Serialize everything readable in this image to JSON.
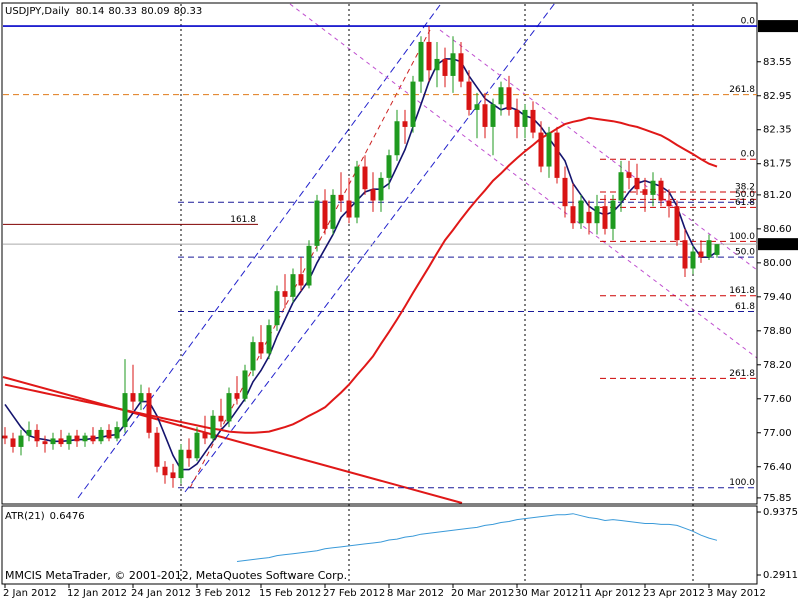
{
  "chart_data": [
    {
      "type": "candlestick",
      "title": "USDJPY,Daily",
      "categories": [
        "2 Jan 2012",
        null,
        null,
        null,
        null,
        null,
        null,
        null,
        "12 Jan 2012",
        null,
        null,
        null,
        null,
        null,
        null,
        null,
        "24 Jan 2012",
        null,
        null,
        null,
        null,
        null,
        null,
        null,
        "3 Feb 2012",
        null,
        null,
        null,
        null,
        null,
        null,
        null,
        "15 Feb 2012",
        null,
        null,
        null,
        null,
        null,
        null,
        null,
        "27 Feb 2012",
        null,
        null,
        null,
        null,
        null,
        null,
        null,
        "8 Mar 2012",
        null,
        null,
        null,
        null,
        null,
        null,
        null,
        "20 Mar 2012",
        null,
        null,
        null,
        null,
        null,
        null,
        null,
        "30 Mar 2012",
        null,
        null,
        null,
        null,
        null,
        null,
        null,
        "11 Apr 2012",
        null,
        null,
        null,
        null,
        null,
        null,
        null,
        "23 Apr 2012",
        null,
        null,
        null,
        null,
        null,
        null,
        null,
        "3 May 2012",
        null
      ],
      "open": [
        76.95,
        76.9,
        76.75,
        76.95,
        77.05,
        76.85,
        76.8,
        76.9,
        76.8,
        76.95,
        76.85,
        76.95,
        76.85,
        77.05,
        76.9,
        77.1,
        77.7,
        77.55,
        77.7,
        77.0,
        76.4,
        76.3,
        76.2,
        76.7,
        76.55,
        77.0,
        76.9,
        77.3,
        77.2,
        77.7,
        77.6,
        78.1,
        78.6,
        78.4,
        78.9,
        79.5,
        79.4,
        79.8,
        79.6,
        80.3,
        81.1,
        80.6,
        81.2,
        81.1,
        80.8,
        81.7,
        81.3,
        81.1,
        81.5,
        81.9,
        82.5,
        82.4,
        83.2,
        83.9,
        83.4,
        83.6,
        83.3,
        83.7,
        83.2,
        82.7,
        82.8,
        82.4,
        82.8,
        83.1,
        82.7,
        82.4,
        82.7,
        82.3,
        81.7,
        82.3,
        81.5,
        81.0,
        80.7,
        80.9,
        80.7,
        81.0,
        80.6,
        81.1,
        81.6,
        81.5,
        81.3,
        81.2,
        81.45,
        81.1,
        81.0,
        80.4,
        79.9,
        80.2,
        80.1,
        80.14
      ],
      "high": [
        77.1,
        77.0,
        77.05,
        77.2,
        77.15,
        76.95,
        77.0,
        77.05,
        77.0,
        77.05,
        77.0,
        77.1,
        77.1,
        77.15,
        77.2,
        78.3,
        78.2,
        77.85,
        77.8,
        77.1,
        76.5,
        76.45,
        76.8,
        76.9,
        77.1,
        77.3,
        77.4,
        77.6,
        77.8,
        78.0,
        78.2,
        78.7,
        78.9,
        79.0,
        79.6,
        79.8,
        79.9,
        80.1,
        80.4,
        81.2,
        81.3,
        81.3,
        81.6,
        81.5,
        81.8,
        81.9,
        81.6,
        81.6,
        82.0,
        82.7,
        82.7,
        83.3,
        84.0,
        84.18,
        83.9,
        83.8,
        84.0,
        83.9,
        83.4,
        83.0,
        83.0,
        82.9,
        83.2,
        83.3,
        82.9,
        82.8,
        82.85,
        82.5,
        82.4,
        82.4,
        81.7,
        81.4,
        81.2,
        81.1,
        81.2,
        81.2,
        81.2,
        81.8,
        81.8,
        81.75,
        81.5,
        81.6,
        81.5,
        81.3,
        81.1,
        80.6,
        80.3,
        80.4,
        80.5,
        80.33
      ],
      "low": [
        76.8,
        76.65,
        76.6,
        76.85,
        76.75,
        76.65,
        76.7,
        76.75,
        76.7,
        76.75,
        76.75,
        76.8,
        76.8,
        76.85,
        76.85,
        77.0,
        77.4,
        77.4,
        76.9,
        76.3,
        76.1,
        76.03,
        76.1,
        76.4,
        76.5,
        76.8,
        76.85,
        77.1,
        77.1,
        77.5,
        77.55,
        78.0,
        78.3,
        78.3,
        78.8,
        79.2,
        79.3,
        79.5,
        79.55,
        80.2,
        80.5,
        80.5,
        80.9,
        80.7,
        80.7,
        81.2,
        80.9,
        80.9,
        81.3,
        81.8,
        82.1,
        82.3,
        83.0,
        83.2,
        83.1,
        83.1,
        83.0,
        83.1,
        82.6,
        82.2,
        82.2,
        81.9,
        82.6,
        82.6,
        82.2,
        82.2,
        82.2,
        81.6,
        81.5,
        81.4,
        80.8,
        80.6,
        80.6,
        80.5,
        80.5,
        80.5,
        80.4,
        80.9,
        81.3,
        81.2,
        80.9,
        81.0,
        81.0,
        80.8,
        80.3,
        79.75,
        79.8,
        80.0,
        80.05,
        80.09
      ],
      "close": [
        76.9,
        76.75,
        76.95,
        77.05,
        76.85,
        76.8,
        76.9,
        76.8,
        76.95,
        76.85,
        76.95,
        76.85,
        77.05,
        76.9,
        77.1,
        77.7,
        77.55,
        77.7,
        77.0,
        76.4,
        76.25,
        76.2,
        76.7,
        76.55,
        77.0,
        76.9,
        77.3,
        77.2,
        77.7,
        77.6,
        78.1,
        78.6,
        78.4,
        78.9,
        79.5,
        79.4,
        79.8,
        79.6,
        80.3,
        81.1,
        80.6,
        81.2,
        81.1,
        80.8,
        81.7,
        81.3,
        81.1,
        81.5,
        81.9,
        82.5,
        82.4,
        83.2,
        83.9,
        83.4,
        83.6,
        83.3,
        83.7,
        83.2,
        82.7,
        82.8,
        82.4,
        82.8,
        83.1,
        82.7,
        82.4,
        82.7,
        82.3,
        81.7,
        82.3,
        81.5,
        81.0,
        80.7,
        81.1,
        80.7,
        81.0,
        80.6,
        81.1,
        81.6,
        81.5,
        81.3,
        81.2,
        81.45,
        81.1,
        81.0,
        80.4,
        79.9,
        80.2,
        80.1,
        80.4,
        80.33
      ],
      "up_color": "#1f9a1f",
      "down_color": "#d81414",
      "overlays": [
        {
          "color": "#14146e",
          "values": [
            77.5,
            77.3,
            77.1,
            76.95,
            76.9,
            76.88,
            76.85,
            76.85,
            76.86,
            76.88,
            76.88,
            76.9,
            76.92,
            76.95,
            76.97,
            77.15,
            77.35,
            77.55,
            77.55,
            77.3,
            76.95,
            76.6,
            76.35,
            76.35,
            76.45,
            76.65,
            76.85,
            77.05,
            77.2,
            77.4,
            77.6,
            77.9,
            78.1,
            78.35,
            78.7,
            79.0,
            79.3,
            79.5,
            79.7,
            80.0,
            80.25,
            80.5,
            80.8,
            80.95,
            81.1,
            81.25,
            81.3,
            81.3,
            81.4,
            81.7,
            82.0,
            82.4,
            82.8,
            83.2,
            83.5,
            83.6,
            83.6,
            83.55,
            83.3,
            83.1,
            82.9,
            82.8,
            82.7,
            82.75,
            82.7,
            82.6,
            82.55,
            82.4,
            82.2,
            82.0,
            81.8,
            81.4,
            81.2,
            81.0,
            80.9,
            80.85,
            80.9,
            81.05,
            81.25,
            81.4,
            81.45,
            81.4,
            81.35,
            81.25,
            81.0,
            80.6,
            80.3,
            80.1,
            80.1,
            80.2
          ]
        },
        {
          "color": "#e01818",
          "values": [
            77.85,
            77.82,
            77.79,
            77.76,
            77.73,
            77.7,
            77.67,
            77.64,
            77.61,
            77.58,
            77.55,
            77.52,
            77.49,
            77.46,
            77.43,
            77.4,
            77.37,
            77.34,
            77.31,
            77.28,
            77.25,
            77.22,
            77.19,
            77.16,
            77.13,
            77.1,
            77.07,
            77.05,
            77.02,
            77.01,
            77.0,
            77.0,
            77.01,
            77.02,
            77.06,
            77.1,
            77.15,
            77.22,
            77.3,
            77.37,
            77.45,
            77.58,
            77.71,
            77.85,
            78.02,
            78.18,
            78.35,
            78.57,
            78.78,
            79.0,
            79.23,
            79.47,
            79.7,
            79.93,
            80.17,
            80.4,
            80.58,
            80.77,
            80.95,
            81.12,
            81.28,
            81.45,
            81.58,
            81.72,
            81.85,
            81.97,
            82.08,
            82.2,
            82.28,
            82.37,
            82.45,
            82.49,
            82.52,
            82.56,
            82.54,
            82.52,
            82.5,
            82.47,
            82.43,
            82.4,
            82.35,
            82.3,
            82.25,
            82.17,
            82.08,
            82.0,
            81.92,
            81.83,
            81.75,
            81.7
          ]
        }
      ],
      "levels": [
        {
          "label": "0.0",
          "value": 84.18,
          "color": "#0000c8",
          "dashed": false
        },
        {
          "label": "261.8",
          "value": 82.97,
          "color": "#e07b1a",
          "dashed": true
        },
        {
          "label": "161.8",
          "value": 80.68,
          "color": "#800000",
          "dashed": false
        },
        {
          "value": 81.07,
          "color": "#1a1a99",
          "dashed": true
        },
        {
          "label": "50.0",
          "value": 80.1,
          "color": "#1a1a99",
          "dashed": true
        },
        {
          "label": "61.8",
          "value": 79.14,
          "color": "#1a1a99",
          "dashed": true
        },
        {
          "label": "100.0",
          "value": 76.03,
          "color": "#1a1a99",
          "dashed": true
        },
        {
          "label": "0.0",
          "value": 81.83,
          "color": "#cc0000",
          "dashed": true
        },
        {
          "label": "38.2",
          "value": 81.25,
          "color": "#cc0000",
          "dashed": true
        },
        {
          "label": "50.0",
          "value": 81.12,
          "color": "#cc0000",
          "dashed": true
        },
        {
          "label": "61.8",
          "value": 80.98,
          "color": "#cc0000",
          "dashed": true
        },
        {
          "label": "100.0",
          "value": 80.38,
          "color": "#cc0000",
          "dashed": true
        },
        {
          "label": "161.8",
          "value": 79.42,
          "color": "#cc0000",
          "dashed": true
        },
        {
          "label": "261.8",
          "value": 77.96,
          "color": "#cc0000",
          "dashed": true
        }
      ],
      "ylim": [
        75.76,
        84.57
      ],
      "yticks": [
        83.55,
        82.95,
        82.35,
        81.75,
        {
          "value": 81.2,
          "label": "81.20"
        },
        {
          "value": 80.6,
          "label": "80.60"
        },
        {
          "value": 80,
          "label": "80.00"
        },
        {
          "value": 79.4,
          "label": "79.40"
        },
        {
          "value": 78.8,
          "label": "78.80"
        },
        {
          "value": 78.2,
          "label": "78.20"
        },
        {
          "value": 77.6,
          "label": "77.60"
        },
        {
          "value": 77,
          "label": "77.00"
        },
        {
          "value": 76.4,
          "label": "76.40"
        },
        75.85
      ]
    },
    {
      "type": "line",
      "title": "ATR(21)",
      "color": "#3a9ad9",
      "values": [
        null,
        null,
        null,
        null,
        null,
        null,
        null,
        null,
        null,
        null,
        null,
        null,
        null,
        null,
        null,
        null,
        null,
        null,
        null,
        null,
        null,
        null,
        null,
        null,
        null,
        null,
        null,
        null,
        null,
        0.43,
        0.44,
        0.45,
        0.46,
        0.47,
        0.49,
        0.5,
        0.51,
        0.52,
        0.53,
        0.54,
        0.56,
        0.57,
        0.58,
        0.59,
        0.6,
        0.61,
        0.62,
        0.63,
        0.65,
        0.66,
        0.68,
        0.69,
        0.71,
        0.72,
        0.73,
        0.74,
        0.75,
        0.76,
        0.77,
        0.78,
        0.8,
        0.81,
        0.83,
        0.84,
        0.86,
        0.87,
        0.88,
        0.89,
        0.9,
        0.91,
        0.91,
        0.92,
        0.9,
        0.88,
        0.87,
        0.85,
        0.86,
        0.85,
        0.84,
        0.83,
        0.82,
        0.82,
        0.81,
        0.81,
        0.8,
        0.77,
        0.74,
        0.7,
        0.67,
        0.6476
      ],
      "ylim": [
        0.209,
        0.989
      ],
      "yticks": [
        0.9375,
        0.2911
      ],
      "footer_text": "MMCIS MetaTrader, © 2001-2012, MetaQuotes Software Corp."
    }
  ]
}
